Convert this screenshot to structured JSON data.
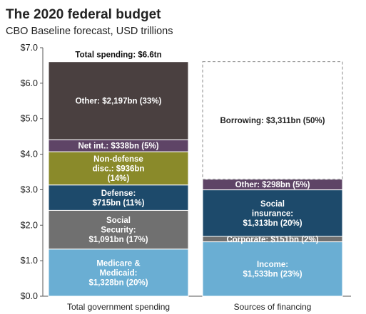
{
  "title": "The 2020 federal budget",
  "subtitle": "CBO Baseline forecast, USD trillions",
  "chart_data": {
    "type": "stacked-bar",
    "categories": [
      "Total government spending",
      "Sources of financing"
    ],
    "ylim": [
      0,
      7
    ],
    "yticks": [
      "$0.0",
      "$1.0",
      "$2.0",
      "$3.0",
      "$4.0",
      "$5.0",
      "$6.0",
      "$7.0"
    ],
    "total_label": "Total spending: $6.6tn",
    "grid": false,
    "stacks": [
      {
        "category": "Total government spending",
        "segments": [
          {
            "label": [
              "Medicare &",
              "Medicaid:",
              "$1,328bn (20%)"
            ],
            "value": 1.328,
            "color": "#6aaed3",
            "text_color": "#ffffff"
          },
          {
            "label": [
              "Social",
              "Security:",
              "$1,091bn (17%)"
            ],
            "value": 1.091,
            "color": "#707070",
            "text_color": "#ffffff"
          },
          {
            "label": [
              "Defense:",
              "$715bn (11%)"
            ],
            "value": 0.715,
            "color": "#1d4a6b",
            "text_color": "#ffffff"
          },
          {
            "label": [
              "Non-defense",
              "disc.: $936bn",
              "(14%)"
            ],
            "value": 0.936,
            "color": "#8a8a2a",
            "text_color": "#ffffff"
          },
          {
            "label": [
              "Net int.: $338bn (5%)"
            ],
            "value": 0.338,
            "color": "#5e4466",
            "text_color": "#ffffff"
          },
          {
            "label": [
              "Other: $2,197bn (33%)"
            ],
            "value": 2.197,
            "color": "#4a4040",
            "text_color": "#ffffff"
          }
        ]
      },
      {
        "category": "Sources of financing",
        "segments": [
          {
            "label": [
              "Income:",
              "$1,533bn (23%)"
            ],
            "value": 1.533,
            "color": "#6aaed3",
            "text_color": "#ffffff"
          },
          {
            "label": [
              "Corporate: $151bn (2%)"
            ],
            "value": 0.151,
            "color": "#707070",
            "text_color": "#ffffff"
          },
          {
            "label": [
              "Social",
              "insurance:",
              "$1,313bn (20%)"
            ],
            "value": 1.313,
            "color": "#1d4a6b",
            "text_color": "#ffffff"
          },
          {
            "label": [
              "Other: $298bn (5%)"
            ],
            "value": 0.298,
            "color": "#5e4466",
            "text_color": "#ffffff"
          },
          {
            "label": [
              "Borrowing: $3,311bn (50%)"
            ],
            "value": 3.311,
            "color": "none",
            "text_color": "#222222",
            "dashed": true
          }
        ]
      }
    ]
  }
}
